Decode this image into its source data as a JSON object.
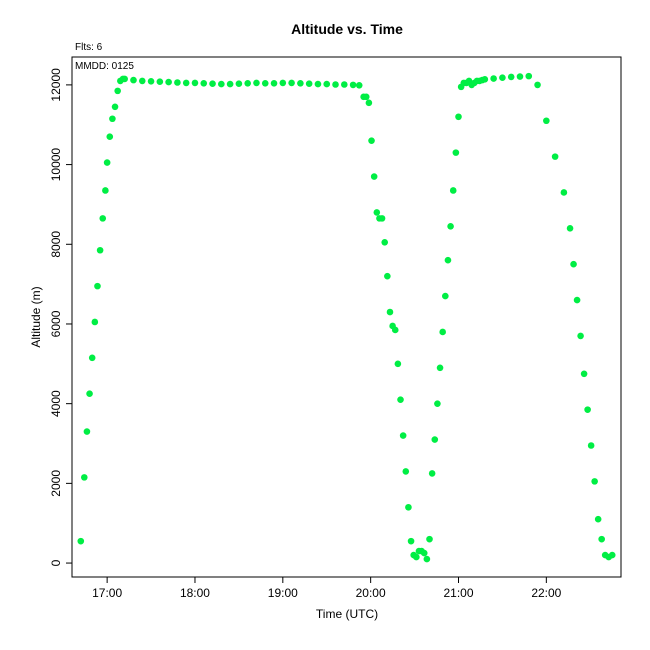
{
  "chart_data": {
    "type": "scatter",
    "title": "Altitude  vs. Time",
    "annotation_top": "Flts: 6",
    "annotation_inner": "MMDD: 0125",
    "xlabel": "Time (UTC)",
    "ylabel": "Altitude (m)",
    "xlim": [
      16.6,
      22.85
    ],
    "ylim": [
      -350,
      12700
    ],
    "x_ticks": [
      {
        "value": 17,
        "label": "17:00"
      },
      {
        "value": 18,
        "label": "18:00"
      },
      {
        "value": 19,
        "label": "19:00"
      },
      {
        "value": 20,
        "label": "20:00"
      },
      {
        "value": 21,
        "label": "21:00"
      },
      {
        "value": 22,
        "label": "22:00"
      }
    ],
    "y_ticks": [
      {
        "value": 0,
        "label": "0"
      },
      {
        "value": 2000,
        "label": "2000"
      },
      {
        "value": 4000,
        "label": "4000"
      },
      {
        "value": 6000,
        "label": "6000"
      },
      {
        "value": 8000,
        "label": "8000"
      },
      {
        "value": 10000,
        "label": "10000"
      },
      {
        "value": 12000,
        "label": "12000"
      }
    ],
    "grid": false,
    "point_color": "#00ee44",
    "series": [
      {
        "x": [
          16.7,
          16.74,
          16.77,
          16.8,
          16.83,
          16.86,
          16.89,
          16.92,
          16.95,
          16.98,
          17.0,
          17.03,
          17.06,
          17.09,
          17.12,
          17.15,
          17.18,
          17.2,
          17.3,
          17.4,
          17.5,
          17.6,
          17.7,
          17.8,
          17.9,
          18.0,
          18.1,
          18.2,
          18.3,
          18.4,
          18.5,
          18.6,
          18.7,
          18.8,
          18.9,
          19.0,
          19.1,
          19.2,
          19.3,
          19.4,
          19.5,
          19.6,
          19.7,
          19.8,
          19.87,
          19.92,
          19.95,
          19.98,
          20.01,
          20.04,
          20.07,
          20.1,
          20.13,
          20.16,
          20.19,
          20.22,
          20.25,
          20.28,
          20.31,
          20.34,
          20.37,
          20.4,
          20.43,
          20.46,
          20.49,
          20.52,
          20.55,
          20.58,
          20.61,
          20.64,
          20.67,
          20.7,
          20.73,
          20.76,
          20.79,
          20.82,
          20.85,
          20.88,
          20.91,
          20.94,
          20.97,
          21.0,
          21.03,
          21.06,
          21.09,
          21.12,
          21.15,
          21.18,
          21.21,
          21.24,
          21.27,
          21.3,
          21.4,
          21.5,
          21.6,
          21.7,
          21.8,
          21.9,
          22.0,
          22.1,
          22.2,
          22.27,
          22.31,
          22.35,
          22.39,
          22.43,
          22.47,
          22.51,
          22.55,
          22.59,
          22.63,
          22.67,
          22.71,
          22.75
        ],
        "y": [
          550,
          2150,
          3300,
          4250,
          5150,
          6050,
          6950,
          7850,
          8650,
          9350,
          10050,
          10700,
          11150,
          11450,
          11850,
          12100,
          12150,
          12150,
          12120,
          12100,
          12090,
          12080,
          12070,
          12060,
          12050,
          12050,
          12040,
          12030,
          12020,
          12020,
          12030,
          12040,
          12050,
          12040,
          12040,
          12050,
          12050,
          12040,
          12030,
          12020,
          12020,
          12010,
          12010,
          12000,
          11990,
          11700,
          11700,
          11550,
          10600,
          9700,
          8800,
          8650,
          8650,
          8050,
          7200,
          6300,
          5950,
          5850,
          5000,
          4100,
          3200,
          2300,
          1400,
          550,
          200,
          150,
          300,
          300,
          250,
          100,
          600,
          2250,
          3100,
          4000,
          4900,
          5800,
          6700,
          7600,
          8450,
          9350,
          10300,
          11200,
          11950,
          12050,
          12050,
          12100,
          12000,
          12050,
          12100,
          12100,
          12120,
          12140,
          12160,
          12180,
          12200,
          12210,
          12220,
          12000,
          11100,
          10200,
          9300,
          8400,
          7500,
          6600,
          5700,
          4750,
          3850,
          2950,
          2050,
          1100,
          600,
          200,
          150,
          200
        ]
      }
    ]
  }
}
